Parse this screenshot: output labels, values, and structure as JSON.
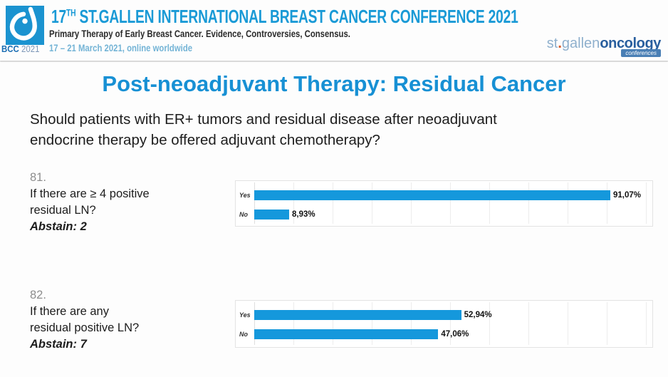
{
  "header": {
    "logo_badge": {
      "bcc": "BCC",
      "year": "2021"
    },
    "title_prefix": "17",
    "title_superscript": "TH",
    "title_main": " ST.GALLEN INTERNATIONAL BREAST CANCER CONFERENCE 2021",
    "subtitle": "Primary Therapy of Early Breast Cancer. Evidence, Controversies, Consensus.",
    "dates": "17 – 21 March 2021, online worldwide",
    "org": {
      "st": "st",
      "dot": ".",
      "gallen": "gallen",
      "oncology": "oncology",
      "conferences": "conferences"
    }
  },
  "slide": {
    "title": "Post-neoadjuvant Therapy: Residual Cancer",
    "question_line1": "Should patients with ER+ tumors and residual disease after neoadjuvant",
    "question_line2": "endocrine therapy be offered adjuvant chemotherapy?"
  },
  "polls": [
    {
      "number": "81.",
      "line1": "If there are ≥ 4 positive",
      "line2": "residual LN?",
      "abstain": "Abstain: 2"
    },
    {
      "number": "82.",
      "line1": "If there are any",
      "line2": "residual positive LN?",
      "abstain": "Abstain: 7"
    }
  ],
  "chart_data": [
    {
      "type": "bar",
      "orientation": "horizontal",
      "title": "Poll 81: If there are ≥ 4 positive residual LN?",
      "categories": [
        "Yes",
        "No"
      ],
      "values": [
        91.07,
        8.93
      ],
      "value_labels": [
        "91,07%",
        "8,93%"
      ],
      "xlim": [
        0,
        100
      ],
      "gridline_interval_pct": 10,
      "grid": true,
      "bar_color": "#1598dc"
    },
    {
      "type": "bar",
      "orientation": "horizontal",
      "title": "Poll 82: If there are any residual positive LN?",
      "categories": [
        "Yes",
        "No"
      ],
      "values": [
        52.94,
        47.06
      ],
      "value_labels": [
        "52,94%",
        "47,06%"
      ],
      "xlim": [
        0,
        100
      ],
      "gridline_interval_pct": 10,
      "grid": true,
      "bar_color": "#1598dc"
    }
  ],
  "colors": {
    "accent_blue": "#1790d4",
    "bar_blue": "#1598dc",
    "header_blue": "#1a9ad6",
    "dates_blue": "#74b4d6",
    "org_light_blue": "#8fb0cd",
    "org_dark_blue": "#285e9e",
    "org_dot_orange": "#d95b2a",
    "badge_blue": "#4a7fb5"
  }
}
